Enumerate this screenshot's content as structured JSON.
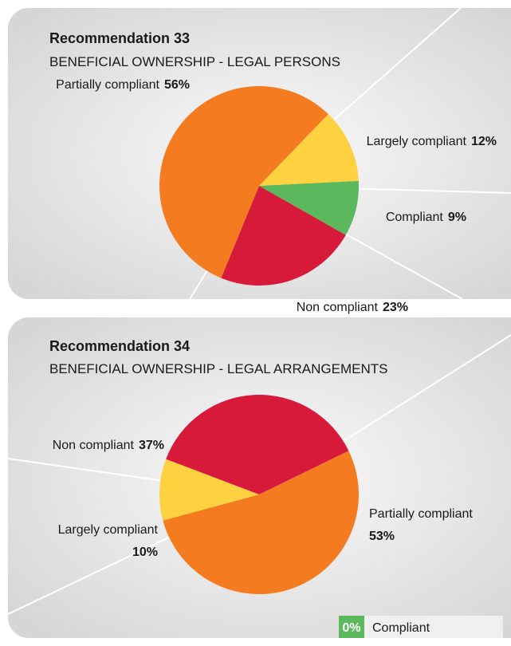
{
  "chart_data": [
    {
      "type": "pie",
      "title": "Recommendation 33",
      "subtitle": "BENEFICIAL OWNERSHIP - LEGAL PERSONS",
      "categories": [
        "Largely compliant",
        "Compliant",
        "Non compliant",
        "Partially compliant"
      ],
      "values": [
        12,
        9,
        23,
        56
      ],
      "value_labels": [
        "12%",
        "9%",
        "23%",
        "56%"
      ],
      "colors": [
        "#fdd13f",
        "#5cb85c",
        "#d7193a",
        "#f47b20"
      ]
    },
    {
      "type": "pie",
      "title": "Recommendation 34",
      "subtitle": "BENEFICIAL OWNERSHIP - LEGAL ARRANGEMENTS",
      "categories": [
        "Partially compliant",
        "Largely compliant",
        "Non compliant",
        "Compliant"
      ],
      "values": [
        53,
        10,
        37,
        0
      ],
      "value_labels": [
        "53%",
        "10%",
        "37%",
        "0%"
      ],
      "colors": [
        "#f47b20",
        "#fdd13f",
        "#d7193a",
        "#5cb85c"
      ]
    }
  ]
}
